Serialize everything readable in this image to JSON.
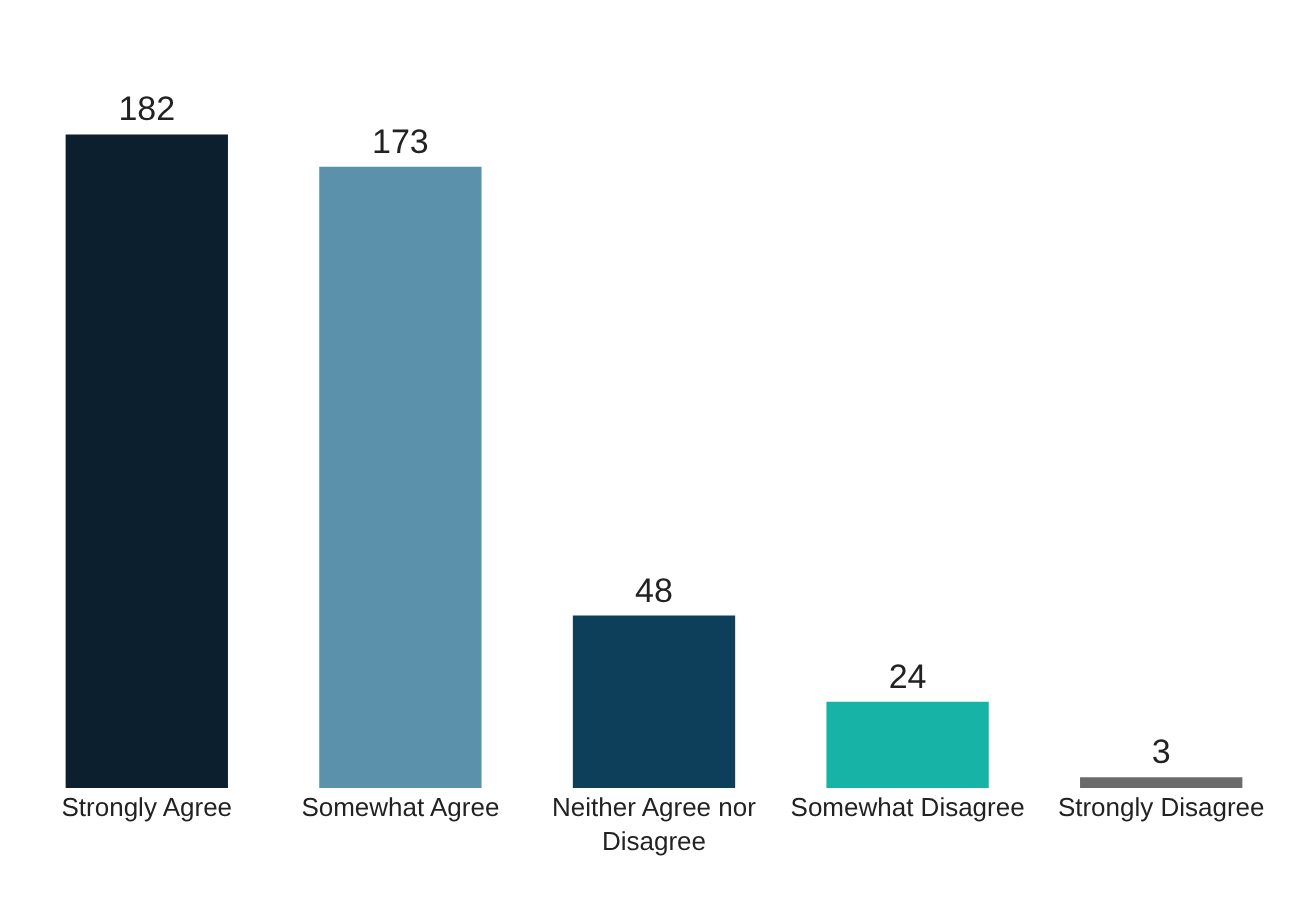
{
  "chart_data": {
    "type": "bar",
    "categories": [
      "Strongly Agree",
      "Somewhat Agree",
      "Neither Agree nor Disagree",
      "Somewhat Disagree",
      "Strongly Disagree"
    ],
    "values": [
      182,
      173,
      48,
      24,
      3
    ],
    "colors": [
      "#0b1f2e",
      "#5b91ab",
      "#0d3f5a",
      "#17b3a6",
      "#6b6b6b"
    ],
    "data_labels": true
  }
}
